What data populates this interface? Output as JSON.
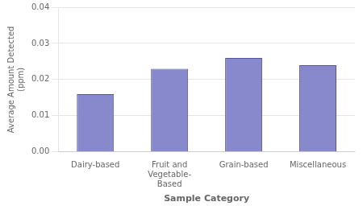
{
  "chart_data": {
    "type": "bar",
    "categories": [
      "Dairy-based",
      "Fruit and\nVegetable-\nBased",
      "Grain-based",
      "Miscellaneous"
    ],
    "values": [
      0.016,
      0.023,
      0.026,
      0.024
    ],
    "color": "#8888cc",
    "xlabel": "Sample Category",
    "ylabel": "Average Amount Detected\n(ppm)",
    "ylim": [
      0,
      0.04
    ],
    "yticks": [
      {
        "value": 0,
        "label": "0.00"
      },
      0.01,
      0.02,
      0.03,
      0.04
    ],
    "grid": true
  }
}
